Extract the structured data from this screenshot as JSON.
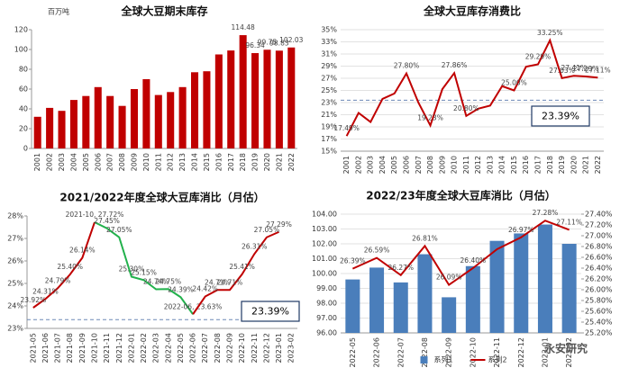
{
  "watermark": "永安研究",
  "chart_data": [
    {
      "type": "bar",
      "title": "全球大豆期末库存",
      "unit": "百万吨",
      "categories": [
        "2001",
        "2002",
        "2003",
        "2004",
        "2005",
        "2006",
        "2007",
        "2008",
        "2009",
        "2010",
        "2011",
        "2012",
        "2013",
        "2014",
        "2015",
        "2016",
        "2017",
        "2018",
        "2019",
        "2020",
        "2021",
        "2022"
      ],
      "series": [
        {
          "color": "#c00000",
          "values": [
            32,
            41,
            38,
            49,
            53,
            62,
            53,
            43,
            60,
            70,
            54,
            57,
            62,
            77,
            78,
            95,
            99,
            114.48,
            96.34,
            99.75,
            98.83,
            102.03
          ],
          "value_labels": [
            null,
            null,
            null,
            null,
            null,
            null,
            null,
            null,
            null,
            null,
            null,
            null,
            null,
            null,
            null,
            null,
            null,
            "114.48",
            "96.34",
            "99.75",
            "98.83",
            "102.03"
          ]
        }
      ],
      "ylim": [
        0,
        120
      ],
      "yticks": [
        0,
        20,
        40,
        60,
        80,
        100,
        120
      ],
      "grid": false
    },
    {
      "type": "line",
      "title": "全球大豆库存消费比",
      "categories": [
        "2001",
        "2002",
        "2003",
        "2004",
        "2005",
        "2006",
        "2007",
        "2008",
        "2009",
        "2010",
        "2011",
        "2012",
        "2013",
        "2014",
        "2015",
        "2016",
        "2017",
        "2018",
        "2019",
        "2020",
        "2021",
        "2022"
      ],
      "series": [
        {
          "color": "#c00000",
          "values": [
            17.49,
            21.3,
            19.8,
            23.6,
            24.5,
            27.8,
            23.0,
            19.23,
            25.2,
            27.86,
            20.8,
            22.0,
            22.5,
            25.7,
            25.0,
            28.9,
            29.29,
            33.25,
            27.03,
            27.41,
            27.29,
            27.11
          ],
          "value_labels": [
            "17.49%",
            null,
            null,
            null,
            null,
            "27.80%",
            null,
            "19.23%",
            null,
            "27.86%",
            "20.80%",
            null,
            null,
            null,
            "25.00%",
            null,
            "29.29%",
            "33.25%",
            "27.03%",
            "27.41%",
            "27.29%",
            "27.11%"
          ]
        }
      ],
      "ylim": [
        15,
        35
      ],
      "yticks": [
        {
          "value": 15,
          "label": "15%"
        },
        {
          "value": 17,
          "label": "17%"
        },
        {
          "value": 19,
          "label": "19%"
        },
        {
          "value": 21,
          "label": "21%"
        },
        {
          "value": 23,
          "label": "23%"
        },
        {
          "value": 25,
          "label": "25%"
        },
        {
          "value": 27,
          "label": "27%"
        },
        {
          "value": 29,
          "label": "29%"
        },
        {
          "value": 31,
          "label": "31%"
        },
        {
          "value": 33,
          "label": "33%"
        },
        {
          "value": 35,
          "label": "35%"
        }
      ],
      "grid": true,
      "reference_line": {
        "value": 23.39,
        "label": "23.39%"
      }
    },
    {
      "type": "line",
      "title": "2021/2022年度全球大豆库消比（月估）",
      "categories": [
        "2021-05",
        "2021-06",
        "2021-07",
        "2021-08",
        "2021-09",
        "2021-10",
        "2021-11",
        "2021-12",
        "2022-01",
        "2022-02",
        "2022-03",
        "2022-04",
        "2022-05",
        "2022-06",
        "2022-07",
        "2022-08",
        "2022-09",
        "2022-10",
        "2022-11",
        "2022-12",
        "2023-01",
        "2023-02"
      ],
      "series": [
        {
          "color": "#c00000",
          "values": [
            23.92,
            24.31,
            24.79,
            25.4,
            26.14,
            27.72,
            null,
            null,
            null,
            null,
            null,
            null,
            null,
            null,
            null,
            null,
            null,
            null,
            null,
            null,
            null,
            null
          ],
          "value_labels": [
            "23.92%",
            "24.31%",
            "24.79%",
            "25.40%",
            "26.14%",
            "2021-10, 27.72%",
            null,
            null,
            null,
            null,
            null,
            null,
            null,
            null,
            null,
            null,
            null,
            null,
            null,
            null,
            null,
            null
          ]
        },
        {
          "color": "#22b14c",
          "values": [
            null,
            null,
            null,
            null,
            null,
            27.72,
            27.45,
            27.05,
            25.3,
            25.15,
            24.74,
            24.75,
            24.39,
            23.63,
            null,
            null,
            null,
            null,
            null,
            null,
            null,
            null
          ],
          "value_labels": [
            null,
            null,
            null,
            null,
            null,
            null,
            "27.45%",
            "27.05%",
            "25.30%",
            "25.15%",
            "24.74%",
            "24.75%",
            "24.39%",
            "2022-06, 23.63%",
            null,
            null,
            null,
            null,
            null,
            null,
            null,
            null
          ]
        },
        {
          "color": "#c00000",
          "values": [
            null,
            null,
            null,
            null,
            null,
            null,
            null,
            null,
            null,
            null,
            null,
            null,
            null,
            23.63,
            24.42,
            24.71,
            24.71,
            25.41,
            26.31,
            27.05,
            27.29,
            null
          ],
          "value_labels": [
            null,
            null,
            null,
            null,
            null,
            null,
            null,
            null,
            null,
            null,
            null,
            null,
            null,
            null,
            "24.42%",
            "24.71%",
            "24.71%",
            "25.41%",
            "26.31%",
            "27.05%",
            "27.29%",
            null
          ]
        }
      ],
      "ylim": [
        23,
        28
      ],
      "yticks": [
        {
          "value": 23,
          "label": "23%"
        },
        {
          "value": 24,
          "label": "24%"
        },
        {
          "value": 25,
          "label": "25%"
        },
        {
          "value": 26,
          "label": "26%"
        },
        {
          "value": 27,
          "label": "27%"
        },
        {
          "value": 28,
          "label": "28%"
        }
      ],
      "grid": false,
      "reference_line": {
        "value": 23.39,
        "label": "23.39%"
      }
    },
    {
      "type": "combo",
      "title": "2022/23年度全球大豆库消比（月估）",
      "categories": [
        "2022-05",
        "2022-06",
        "2022-07",
        "2022-08",
        "2022-09",
        "2022-10",
        "2022-11",
        "2022-12",
        "2023-01",
        "2023-02"
      ],
      "series": [
        {
          "name": "系列1",
          "type": "bar",
          "color": "#4a7ebb",
          "values": [
            99.6,
            100.4,
            99.4,
            101.3,
            98.4,
            100.5,
            102.2,
            102.7,
            103.3,
            102.0
          ]
        },
        {
          "name": "系列2",
          "type": "line",
          "axis": "y2",
          "color": "#c00000",
          "values": [
            26.39,
            26.59,
            26.27,
            26.81,
            26.09,
            26.4,
            26.75,
            26.97,
            27.28,
            27.11
          ],
          "value_labels": [
            "26.39%",
            "26.59%",
            "26.27%",
            "26.81%",
            "26.09%",
            "26.40%",
            null,
            "26.97%",
            "27.28%",
            "27.11%"
          ]
        }
      ],
      "ylim": [
        96,
        104
      ],
      "yticks": [
        {
          "value": 96,
          "label": "96.00"
        },
        {
          "value": 97,
          "label": "97.00"
        },
        {
          "value": 98,
          "label": "98.00"
        },
        {
          "value": 99,
          "label": "99.00"
        },
        {
          "value": 100,
          "label": "100.00"
        },
        {
          "value": 101,
          "label": "101.00"
        },
        {
          "value": 102,
          "label": "102.00"
        },
        {
          "value": 103,
          "label": "103.00"
        },
        {
          "value": 104,
          "label": "104.00"
        }
      ],
      "y2lim": [
        25.2,
        27.4
      ],
      "y2ticks": [
        {
          "value": 25.2,
          "label": "25.20%"
        },
        {
          "value": 25.4,
          "label": "25.40%"
        },
        {
          "value": 25.6,
          "label": "25.60%"
        },
        {
          "value": 25.8,
          "label": "25.80%"
        },
        {
          "value": 26.0,
          "label": "26.00%"
        },
        {
          "value": 26.2,
          "label": "26.20%"
        },
        {
          "value": 26.4,
          "label": "26.40%"
        },
        {
          "value": 26.6,
          "label": "26.60%"
        },
        {
          "value": 26.8,
          "label": "26.80%"
        },
        {
          "value": 27.0,
          "label": "27.00%"
        },
        {
          "value": 27.2,
          "label": "27.20%"
        },
        {
          "value": 27.4,
          "label": "27.40%"
        }
      ],
      "grid": true
    }
  ]
}
